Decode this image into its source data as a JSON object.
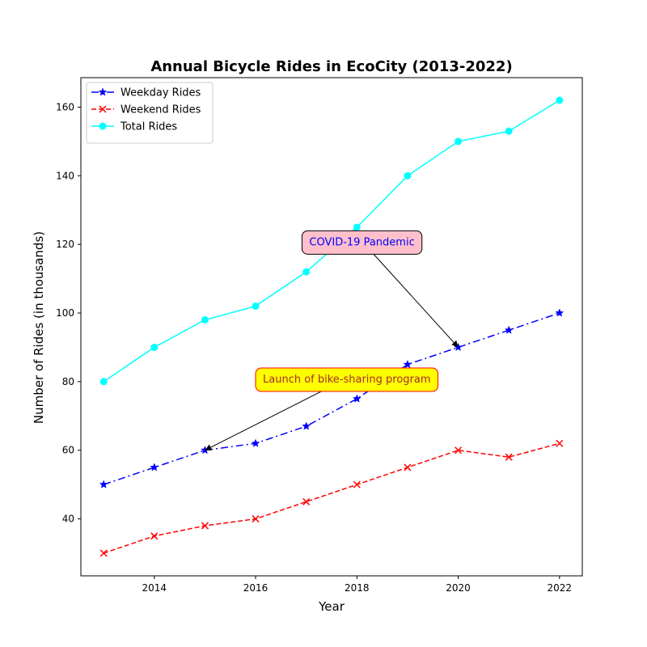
{
  "chart_data": {
    "type": "line",
    "title": "Annual Bicycle Rides in EcoCity (2013-2022)",
    "xlabel": "Year",
    "ylabel": "Number of Rides (in thousands)",
    "x": [
      2013,
      2014,
      2015,
      2016,
      2017,
      2018,
      2019,
      2020,
      2021,
      2022
    ],
    "xlim": [
      2012.55,
      2022.45
    ],
    "ylim": [
      23.4,
      168.6
    ],
    "x_ticks": [
      2014,
      2016,
      2018,
      2020,
      2022
    ],
    "y_ticks": [
      40,
      60,
      80,
      100,
      120,
      140,
      160
    ],
    "grid": false,
    "legend_position": "top-left",
    "series": [
      {
        "name": "Weekday Rides",
        "values": [
          50,
          55,
          60,
          62,
          67,
          75,
          85,
          90,
          95,
          100
        ],
        "color": "#0000ff",
        "marker": "star",
        "linestyle": "dash-dot"
      },
      {
        "name": "Weekend Rides",
        "values": [
          30,
          35,
          38,
          40,
          45,
          50,
          55,
          60,
          58,
          62
        ],
        "color": "#ff0000",
        "marker": "x",
        "linestyle": "dashed"
      },
      {
        "name": "Total Rides",
        "values": [
          80,
          90,
          98,
          102,
          112,
          125,
          140,
          150,
          153,
          162
        ],
        "color": "#00ffff",
        "marker": "circle",
        "linestyle": "solid"
      }
    ],
    "annotations": [
      {
        "text": "COVID-19 Pandemic",
        "target": [
          2020,
          90
        ],
        "label_at": [
          2018.1,
          120.9
        ],
        "text_color": "#0000ff",
        "box_color": "#ffc0cb",
        "edge_color": "#000000"
      },
      {
        "text": "Launch of bike-sharing program",
        "target": [
          2015,
          60
        ],
        "label_at": [
          2017.8,
          80.9
        ],
        "text_color": "#a52a2a",
        "box_color": "#ffff00",
        "edge_color": "#ff0000"
      }
    ]
  }
}
